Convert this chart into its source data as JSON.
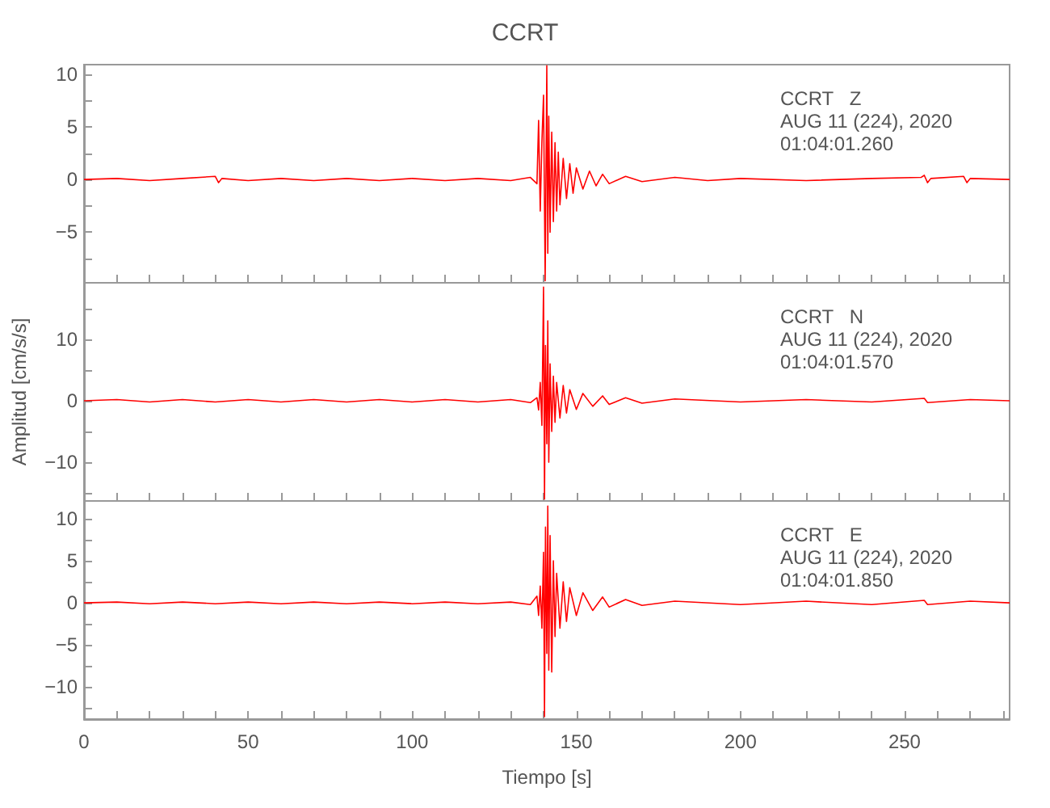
{
  "chart_data": [
    {
      "type": "line",
      "title": "CCRT",
      "annotations": [
        "CCRT   Z",
        "AUG 11 (224), 2020",
        "01:04:01.260"
      ],
      "marker": "none",
      "tick_labels": "y",
      "xlim": [
        0,
        282
      ],
      "xticks": [
        0,
        {
          "value": 10,
          "label": null
        },
        {
          "value": 20,
          "label": null
        },
        {
          "value": 30,
          "label": null
        },
        {
          "value": 40,
          "label": null
        },
        50,
        {
          "value": 60,
          "label": null
        },
        {
          "value": 70,
          "label": null
        },
        {
          "value": 80,
          "label": null
        },
        {
          "value": 90,
          "label": null
        },
        100,
        {
          "value": 110,
          "label": null
        },
        {
          "value": 120,
          "label": null
        },
        {
          "value": 130,
          "label": null
        },
        {
          "value": 140,
          "label": null
        },
        150,
        {
          "value": 160,
          "label": null
        },
        {
          "value": 170,
          "label": null
        },
        {
          "value": 180,
          "label": null
        },
        {
          "value": 190,
          "label": null
        },
        200,
        {
          "value": 210,
          "label": null
        },
        {
          "value": 220,
          "label": null
        },
        {
          "value": 230,
          "label": null
        },
        {
          "value": 240,
          "label": null
        },
        250,
        {
          "value": 260,
          "label": null
        },
        {
          "value": 270,
          "label": null
        },
        {
          "value": 280,
          "label": null
        }
      ],
      "ylim": [
        -9.8,
        10.9
      ],
      "yticks": [
        {
          "value": -7.5,
          "label": null
        },
        -5,
        {
          "value": -2.5,
          "label": null
        },
        0,
        {
          "value": 2.5,
          "label": null
        },
        5,
        {
          "value": 7.5,
          "label": null
        },
        10
      ],
      "x": [
        0,
        10,
        20,
        30,
        40,
        41,
        42,
        50,
        60,
        70,
        80,
        90,
        100,
        110,
        120,
        130,
        136,
        138,
        138.5,
        139,
        139.5,
        140,
        140.5,
        141,
        141.3,
        141.6,
        142,
        142.5,
        143,
        143.5,
        144,
        144.5,
        145,
        146,
        147,
        148,
        149,
        150,
        152,
        154,
        156,
        158,
        160,
        165,
        170,
        180,
        190,
        200,
        220,
        240,
        255,
        256,
        257,
        258,
        268,
        269,
        270,
        282
      ],
      "series": [
        {
          "color": "#ff0000",
          "values": [
            0,
            0.1,
            -0.1,
            0.1,
            0.3,
            -0.3,
            0.1,
            -0.1,
            0.1,
            -0.1,
            0.1,
            -0.1,
            0.1,
            -0.1,
            0.1,
            -0.1,
            0.2,
            -0.4,
            5.6,
            -3,
            3.5,
            8,
            -9.6,
            10.8,
            -7,
            6,
            -5,
            4.5,
            -4,
            3.5,
            -3,
            2.6,
            -2.4,
            2,
            -1.8,
            1.5,
            -1.3,
            1.1,
            -0.9,
            0.8,
            -0.6,
            0.5,
            -0.4,
            0.3,
            -0.2,
            0.2,
            -0.1,
            0.1,
            -0.1,
            0.1,
            0.2,
            0.4,
            -0.3,
            0.1,
            0.3,
            -0.3,
            0.1,
            0
          ]
        }
      ]
    },
    {
      "type": "line",
      "ylabel": "Amplitud [cm/s/s]",
      "annotations": [
        "CCRT   N",
        "AUG 11 (224), 2020",
        "01:04:01.570"
      ],
      "marker": "none",
      "tick_labels": "y",
      "xlim": [
        0,
        282
      ],
      "xticks": [
        0,
        {
          "value": 10,
          "label": null
        },
        {
          "value": 20,
          "label": null
        },
        {
          "value": 30,
          "label": null
        },
        {
          "value": 40,
          "label": null
        },
        50,
        {
          "value": 60,
          "label": null
        },
        {
          "value": 70,
          "label": null
        },
        {
          "value": 80,
          "label": null
        },
        {
          "value": 90,
          "label": null
        },
        100,
        {
          "value": 110,
          "label": null
        },
        {
          "value": 120,
          "label": null
        },
        {
          "value": 130,
          "label": null
        },
        {
          "value": 140,
          "label": null
        },
        150,
        {
          "value": 160,
          "label": null
        },
        {
          "value": 170,
          "label": null
        },
        {
          "value": 180,
          "label": null
        },
        {
          "value": 190,
          "label": null
        },
        200,
        {
          "value": 210,
          "label": null
        },
        {
          "value": 220,
          "label": null
        },
        {
          "value": 230,
          "label": null
        },
        {
          "value": 240,
          "label": null
        },
        250,
        {
          "value": 260,
          "label": null
        },
        {
          "value": 270,
          "label": null
        },
        {
          "value": 280,
          "label": null
        }
      ],
      "ylim": [
        -16.3,
        19.2
      ],
      "yticks": [
        {
          "value": -15,
          "label": null
        },
        -10,
        {
          "value": -5,
          "label": null
        },
        0,
        {
          "value": 5,
          "label": null
        },
        10,
        {
          "value": 15,
          "label": null
        }
      ],
      "x": [
        0,
        10,
        20,
        30,
        40,
        50,
        60,
        70,
        80,
        90,
        100,
        110,
        120,
        130,
        136,
        138,
        138.5,
        139,
        139.5,
        140,
        140.3,
        140.6,
        141,
        141.3,
        141.6,
        142,
        142.5,
        143,
        143.5,
        144,
        145,
        146,
        147,
        148,
        150,
        152,
        155,
        158,
        160,
        165,
        170,
        180,
        200,
        220,
        240,
        256,
        257,
        270,
        282
      ],
      "series": [
        {
          "color": "#ff0000",
          "values": [
            0,
            0.2,
            -0.2,
            0.2,
            -0.2,
            0.2,
            -0.2,
            0.2,
            -0.2,
            0.2,
            -0.2,
            0.2,
            -0.2,
            0.2,
            -0.3,
            0.5,
            -1.5,
            3,
            -4,
            18.5,
            -16,
            9,
            -7,
            13,
            -10,
            6,
            -5,
            4,
            -3.5,
            3,
            -2.8,
            2.5,
            -2,
            1.8,
            -1.4,
            1.2,
            -0.9,
            0.8,
            -0.6,
            0.5,
            -0.4,
            0.3,
            -0.2,
            0.2,
            -0.2,
            0.4,
            -0.3,
            0.2,
            0
          ]
        }
      ]
    },
    {
      "type": "line",
      "xlabel": "Tiempo [s]",
      "annotations": [
        "CCRT   E",
        "AUG 11 (224), 2020",
        "01:04:01.850"
      ],
      "marker": "none",
      "xlim": [
        0,
        282
      ],
      "xticks": [
        0,
        {
          "value": 10,
          "label": null
        },
        {
          "value": 20,
          "label": null
        },
        {
          "value": 30,
          "label": null
        },
        {
          "value": 40,
          "label": null
        },
        50,
        {
          "value": 60,
          "label": null
        },
        {
          "value": 70,
          "label": null
        },
        {
          "value": 80,
          "label": null
        },
        {
          "value": 90,
          "label": null
        },
        100,
        {
          "value": 110,
          "label": null
        },
        {
          "value": 120,
          "label": null
        },
        {
          "value": 130,
          "label": null
        },
        {
          "value": 140,
          "label": null
        },
        150,
        {
          "value": 160,
          "label": null
        },
        {
          "value": 170,
          "label": null
        },
        {
          "value": 180,
          "label": null
        },
        {
          "value": 190,
          "label": null
        },
        200,
        {
          "value": 210,
          "label": null
        },
        {
          "value": 220,
          "label": null
        },
        {
          "value": 230,
          "label": null
        },
        {
          "value": 240,
          "label": null
        },
        250,
        {
          "value": 260,
          "label": null
        },
        {
          "value": 270,
          "label": null
        },
        {
          "value": 280,
          "label": null
        }
      ],
      "ylim": [
        -13.8,
        12.1
      ],
      "yticks": [
        {
          "value": -12.5,
          "label": null
        },
        -10,
        {
          "value": -7.5,
          "label": null
        },
        -5,
        {
          "value": -2.5,
          "label": null
        },
        0,
        {
          "value": 2.5,
          "label": null
        },
        5,
        {
          "value": 7.5,
          "label": null
        },
        10
      ],
      "x": [
        0,
        10,
        20,
        30,
        40,
        50,
        60,
        70,
        80,
        90,
        100,
        110,
        120,
        130,
        136,
        138,
        138.5,
        139,
        139.5,
        140,
        140.3,
        140.6,
        141,
        141.3,
        141.6,
        142,
        142.5,
        143,
        143.5,
        144,
        145,
        146,
        147,
        148,
        150,
        152,
        155,
        158,
        160,
        165,
        170,
        180,
        200,
        220,
        240,
        256,
        257,
        270,
        282
      ],
      "series": [
        {
          "color": "#ff0000",
          "values": [
            0,
            0.1,
            -0.1,
            0.1,
            -0.1,
            0.1,
            -0.1,
            0.1,
            -0.1,
            0.1,
            -0.1,
            0.1,
            -0.1,
            0.1,
            -0.2,
            0.8,
            -1.5,
            2,
            -3,
            6,
            -13.5,
            9,
            -6,
            11.5,
            -8,
            8,
            -8.2,
            5,
            -4,
            3.5,
            -3,
            2.5,
            -2.2,
            1.8,
            -1.5,
            1.2,
            -0.9,
            0.7,
            -0.5,
            0.4,
            -0.3,
            0.2,
            -0.2,
            0.2,
            -0.2,
            0.3,
            -0.2,
            0.2,
            0
          ]
        }
      ]
    }
  ]
}
